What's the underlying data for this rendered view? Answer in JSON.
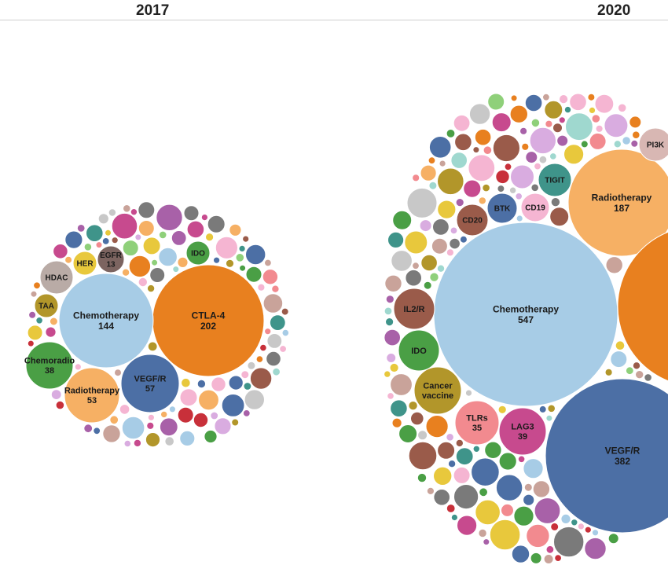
{
  "chart_data": [
    {
      "type": "bubble",
      "title": "2017",
      "labeled": [
        {
          "label": "CTLA-4",
          "value": 202,
          "color": "#e8801f"
        },
        {
          "label": "Chemotherapy",
          "value": 144,
          "color": "#a7cce6"
        },
        {
          "label": "VEGF/R",
          "value": 57,
          "color": "#4c6fa5"
        },
        {
          "label": "Radiotherapy",
          "value": 53,
          "color": "#f6b064"
        },
        {
          "label": "Chemoradio",
          "value": 38,
          "color": "#4a9f45"
        },
        {
          "label": "HDAC",
          "value": null,
          "color": "#b9aba6"
        },
        {
          "label": "HER",
          "value": null,
          "color": "#e8c83c"
        },
        {
          "label": "EGFR",
          "value": 13,
          "color": "#7c6460"
        },
        {
          "label": "IDO",
          "value": null,
          "color": "#4a9f45"
        },
        {
          "label": "TAA",
          "value": null,
          "color": "#b2962a"
        }
      ]
    },
    {
      "type": "bubble",
      "title": "2020",
      "labeled": [
        {
          "label": "Chemotherapy",
          "value": 547,
          "color": "#a7cce6"
        },
        {
          "label": "VEGF/R",
          "value": 382,
          "color": "#4c6fa5"
        },
        {
          "label": "Radiotherapy",
          "value": 187,
          "color": "#f6b064"
        },
        {
          "label": "LAG3",
          "value": 39,
          "color": "#c74a8e"
        },
        {
          "label": "TLRs",
          "value": 35,
          "color": "#f28a8f"
        },
        {
          "label": "Cancer vaccine",
          "value": null,
          "color": "#b2962a"
        },
        {
          "label": "IDO",
          "value": null,
          "color": "#4a9f45"
        },
        {
          "label": "IL2/R",
          "value": null,
          "color": "#9a5b4a"
        },
        {
          "label": "CD20",
          "value": null,
          "color": "#9a5b4a"
        },
        {
          "label": "BTK",
          "value": null,
          "color": "#4c6fa5"
        },
        {
          "label": "CD19",
          "value": null,
          "color": "#f5b5d2"
        },
        {
          "label": "TIGIT",
          "value": null,
          "color": "#3f948a"
        },
        {
          "label": "PI3K",
          "value": null,
          "color": "#d8b7b3"
        },
        {
          "label": "",
          "value": null,
          "color": "#e8801f"
        }
      ]
    }
  ],
  "palette": [
    "#4c6fa5",
    "#a7cce6",
    "#e8801f",
    "#f6b064",
    "#4a9f45",
    "#8fd07a",
    "#c8303a",
    "#f28a8f",
    "#9a5b4a",
    "#c9a39a",
    "#c74a8e",
    "#f5b5d2",
    "#7a7a7a",
    "#c8c8c8",
    "#b2962a",
    "#e8c83c",
    "#3f948a",
    "#9fd8cf",
    "#a861a8",
    "#d9ace0"
  ]
}
